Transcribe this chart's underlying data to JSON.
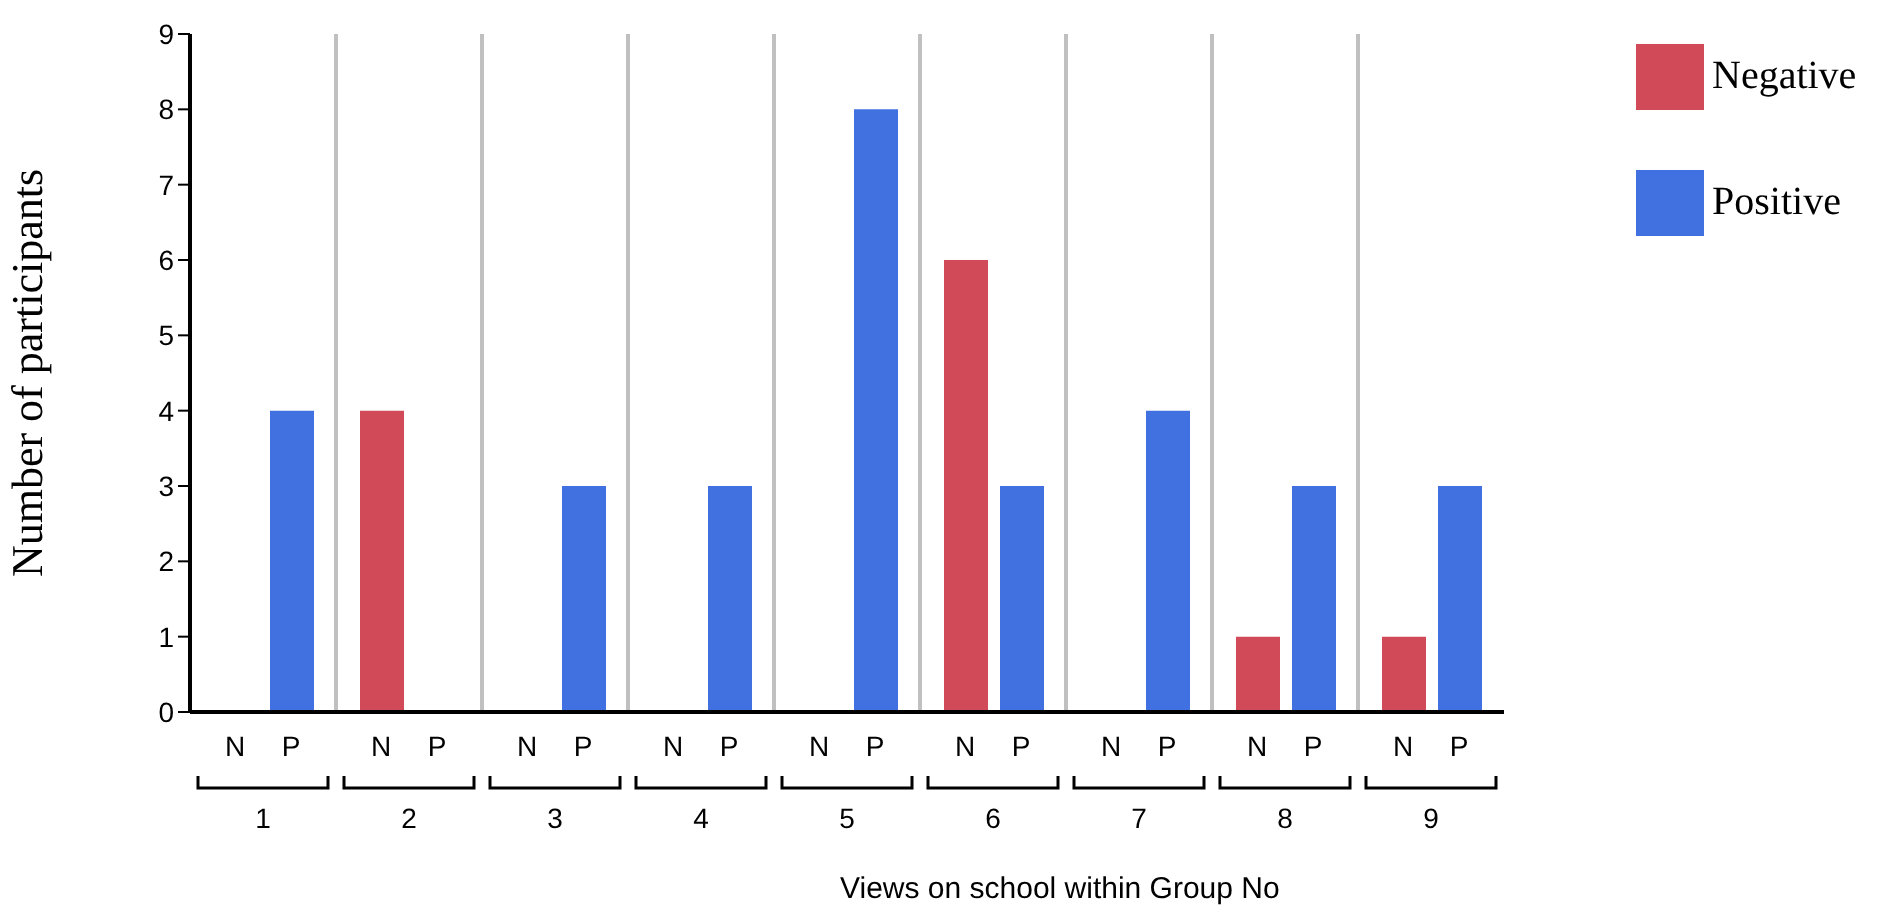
{
  "chart_data": {
    "type": "bar",
    "xlabel": "Views on school within Group No",
    "ylabel": "Number of participants",
    "categories": [
      "1",
      "2",
      "3",
      "4",
      "5",
      "6",
      "7",
      "8",
      "9"
    ],
    "series": [
      {
        "name": "Negative",
        "color": "#d04a58",
        "values": [
          0,
          4,
          0,
          0,
          0,
          6,
          0,
          1,
          1
        ]
      },
      {
        "name": "Positive",
        "color": "#4170e0",
        "values": [
          4,
          0,
          3,
          3,
          8,
          3,
          4,
          3,
          3
        ]
      }
    ],
    "annotations": [
      "N",
      "P",
      "N",
      "P",
      "N",
      "P",
      "N",
      "P",
      "N",
      "P",
      "N",
      "P",
      "N",
      "P",
      "N",
      "P",
      "N",
      "P"
    ],
    "ylim": [
      0,
      9
    ],
    "yticks": [
      0,
      1,
      2,
      3,
      4,
      5,
      6,
      7,
      8,
      9
    ],
    "grid": "x",
    "legend": "top right"
  }
}
